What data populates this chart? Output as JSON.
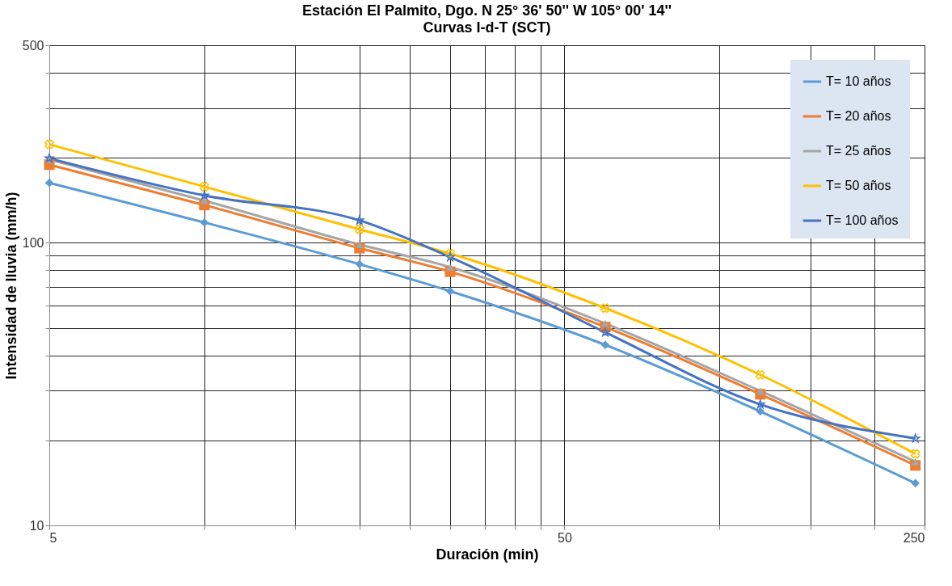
{
  "chart_data": {
    "type": "line",
    "title": "Estación El Palmito, Dgo.     N 25° 36' 50''     W  105° 00' 14''",
    "subtitle": "Curvas I-d-T  (SCT)",
    "xlabel": "Duración (min)",
    "ylabel": "Intensidad de lluvia  (mm/h)",
    "x": [
      5,
      10,
      20,
      30,
      60,
      120,
      240
    ],
    "series": [
      {
        "name": "T= 10 años",
        "color": "#5b9bd5",
        "marker": "diamond",
        "values": [
          163,
          118,
          84,
          67.4,
          43.5,
          25.3,
          14.1
        ]
      },
      {
        "name": "T= 20 años",
        "color": "#ed7d31",
        "marker": "square",
        "values": [
          189,
          136,
          95.7,
          79,
          50.3,
          29.1,
          16.3
        ]
      },
      {
        "name": "T= 25 años",
        "color": "#a5a5a5",
        "marker": "triangle",
        "values": [
          197,
          141,
          98.6,
          82,
          51.8,
          29.9,
          16.8
        ]
      },
      {
        "name": "T= 50 años",
        "color": "#ffc000",
        "marker": "cross",
        "values": [
          223,
          158,
          111.6,
          91.6,
          58.7,
          34.1,
          17.9
        ]
      },
      {
        "name": "T= 100 años",
        "color": "#4472c4",
        "marker": "star",
        "values": [
          199,
          147,
          120,
          89,
          48.2,
          26.8,
          20.3
        ]
      }
    ],
    "log": "xy",
    "xlim": [
      5,
      250
    ],
    "ylim": [
      10,
      500
    ],
    "xticks": [
      5,
      {
        "value": 10,
        "label": null
      },
      {
        "value": 15,
        "label": null
      },
      {
        "value": 20,
        "label": null
      },
      {
        "value": 25,
        "label": null
      },
      {
        "value": 30,
        "label": null
      },
      {
        "value": 35,
        "label": null
      },
      {
        "value": 40,
        "label": null
      },
      {
        "value": 45,
        "label": null
      },
      50,
      {
        "value": 100,
        "label": null
      },
      {
        "value": 150,
        "label": null
      },
      {
        "value": 200,
        "label": null
      },
      250
    ],
    "yticks": [
      10,
      {
        "value": 20,
        "label": null
      },
      {
        "value": 30,
        "label": null
      },
      {
        "value": 40,
        "label": null
      },
      {
        "value": 50,
        "label": null
      },
      {
        "value": 60,
        "label": null
      },
      {
        "value": 70,
        "label": null
      },
      {
        "value": 80,
        "label": null
      },
      {
        "value": 90,
        "label": null
      },
      100,
      {
        "value": 200,
        "label": null
      },
      {
        "value": 300,
        "label": null
      },
      {
        "value": 400,
        "label": null
      },
      500
    ],
    "grid": true,
    "legend": "top right",
    "line_style": "solid"
  }
}
